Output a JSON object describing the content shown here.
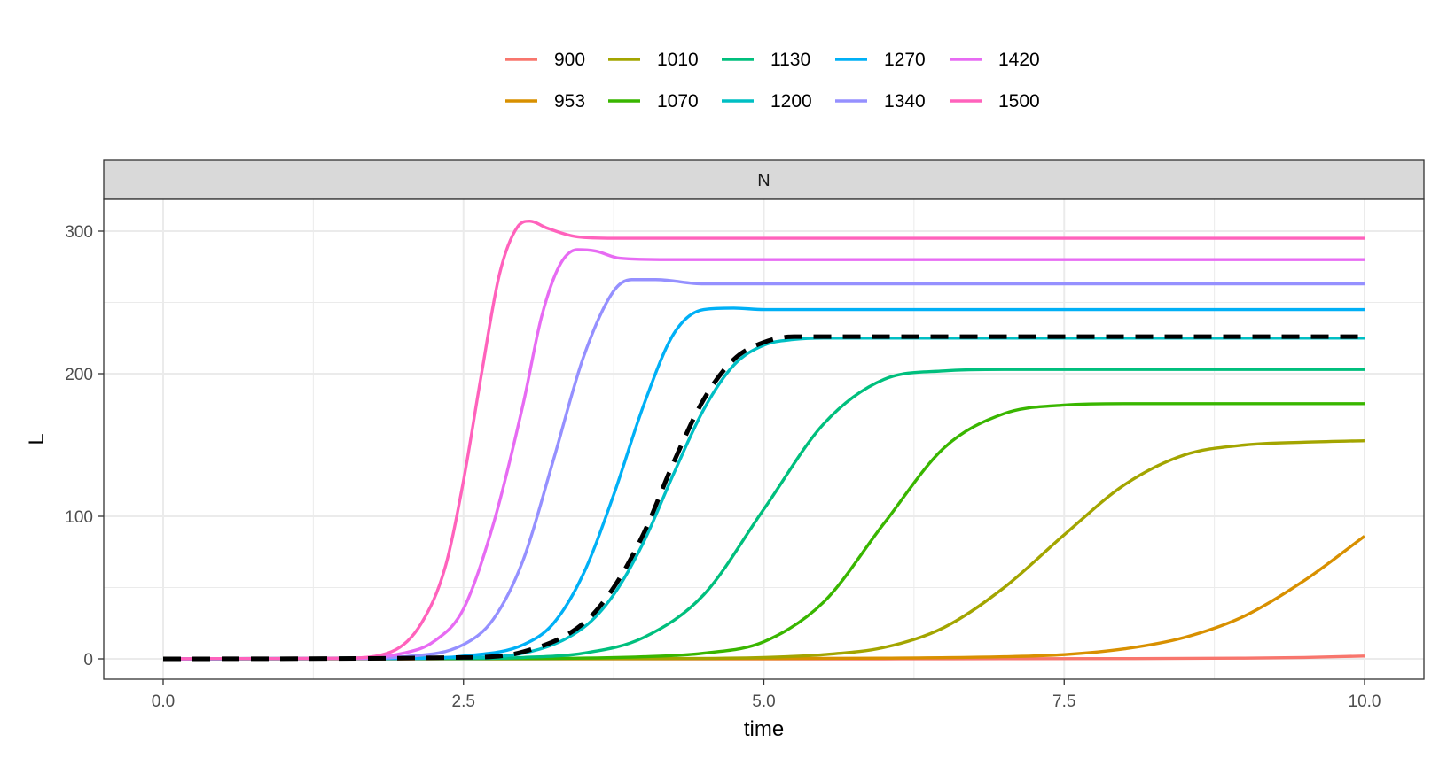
{
  "chart_data": {
    "type": "line",
    "facet_label": "N",
    "xlabel": "time",
    "ylabel": "L",
    "xlim": [
      0,
      10
    ],
    "ylim": [
      0,
      310
    ],
    "x_ticks": [
      0,
      2.5,
      5,
      7.5,
      10
    ],
    "x_tick_labels": [
      "0.0",
      "2.5",
      "5.0",
      "7.5",
      "10.0"
    ],
    "y_ticks": [
      0,
      100,
      200,
      300
    ],
    "y_tick_labels": [
      "0",
      "100",
      "200",
      "300"
    ],
    "grid": true,
    "legend_position": "top",
    "series": [
      {
        "name": "900",
        "color": "#F8766D",
        "x": [
          0,
          2,
          4,
          6,
          7,
          8,
          9,
          9.5,
          10
        ],
        "y": [
          0,
          0,
          0,
          0,
          0.1,
          0.2,
          0.5,
          1,
          2
        ]
      },
      {
        "name": "953",
        "color": "#D89000",
        "x": [
          0,
          5,
          6,
          7,
          7.5,
          8,
          8.5,
          9,
          9.5,
          10
        ],
        "y": [
          0,
          0.2,
          0.5,
          1.5,
          3,
          7,
          15,
          30,
          55,
          86
        ]
      },
      {
        "name": "1010",
        "color": "#A3A500",
        "x": [
          0,
          4,
          5,
          5.5,
          6,
          6.5,
          7,
          7.5,
          8,
          8.5,
          9,
          9.5,
          10
        ],
        "y": [
          0,
          0.2,
          1,
          3,
          8,
          22,
          50,
          87,
          122,
          143,
          150,
          152,
          153
        ]
      },
      {
        "name": "1070",
        "color": "#39B600",
        "x": [
          0,
          3,
          4,
          4.5,
          5,
          5.5,
          6,
          6.5,
          7,
          7.5,
          8,
          10
        ],
        "y": [
          0,
          0.2,
          1.5,
          4,
          12,
          40,
          95,
          148,
          172,
          178,
          179,
          179
        ]
      },
      {
        "name": "1130",
        "color": "#00BF7D",
        "x": [
          0,
          2.5,
          3,
          3.5,
          4,
          4.5,
          5,
          5.5,
          6,
          6.5,
          7,
          10
        ],
        "y": [
          0,
          0.2,
          1,
          4,
          15,
          45,
          105,
          165,
          196,
          202,
          203,
          203
        ]
      },
      {
        "name": "1200",
        "color": "#00BFC4",
        "x": [
          0,
          2.5,
          3,
          3.5,
          3.75,
          4,
          4.25,
          4.5,
          4.75,
          5,
          5.25,
          5.5,
          6,
          10
        ],
        "y": [
          0,
          1,
          4,
          22,
          45,
          82,
          130,
          175,
          206,
          220,
          224,
          225,
          225,
          225
        ]
      },
      {
        "name": "1270",
        "color": "#00B0F6",
        "x": [
          0,
          2,
          2.5,
          3,
          3.25,
          3.5,
          3.75,
          4,
          4.25,
          4.5,
          4.75,
          5,
          5.5,
          10
        ],
        "y": [
          0,
          0.2,
          2,
          10,
          25,
          60,
          115,
          178,
          228,
          245,
          246,
          245,
          245,
          245
        ]
      },
      {
        "name": "1340",
        "color": "#9590FF",
        "x": [
          0,
          1.5,
          2,
          2.5,
          2.75,
          3,
          3.25,
          3.5,
          3.75,
          3.9,
          4.1,
          4.5,
          5,
          10
        ],
        "y": [
          0,
          0.1,
          1.5,
          10,
          28,
          70,
          140,
          212,
          258,
          266,
          266,
          263,
          263,
          263
        ]
      },
      {
        "name": "1420",
        "color": "#E76BF3",
        "x": [
          0,
          1.5,
          2,
          2.25,
          2.5,
          2.75,
          3,
          3.15,
          3.3,
          3.45,
          3.6,
          3.8,
          4.2,
          5,
          10
        ],
        "y": [
          0,
          0.3,
          4,
          12,
          35,
          95,
          180,
          240,
          276,
          287,
          286,
          281,
          280,
          280,
          280
        ]
      },
      {
        "name": "1500",
        "color": "#FF62BC",
        "x": [
          0,
          1.5,
          1.9,
          2.15,
          2.35,
          2.5,
          2.65,
          2.8,
          2.95,
          3.05,
          3.2,
          3.45,
          3.75,
          4.2,
          5,
          10
        ],
        "y": [
          0,
          0.5,
          5,
          25,
          65,
          125,
          200,
          270,
          303,
          307,
          302,
          296,
          295,
          295,
          295,
          295
        ]
      }
    ],
    "reference_series": {
      "style": "dashed",
      "color": "#000000",
      "x": [
        0,
        2.5,
        3,
        3.5,
        3.75,
        4,
        4.25,
        4.5,
        4.75,
        5,
        5.25,
        5.5,
        6,
        10
      ],
      "y": [
        0,
        1,
        5,
        25,
        50,
        88,
        138,
        182,
        210,
        222,
        226,
        226,
        226,
        226
      ]
    }
  }
}
